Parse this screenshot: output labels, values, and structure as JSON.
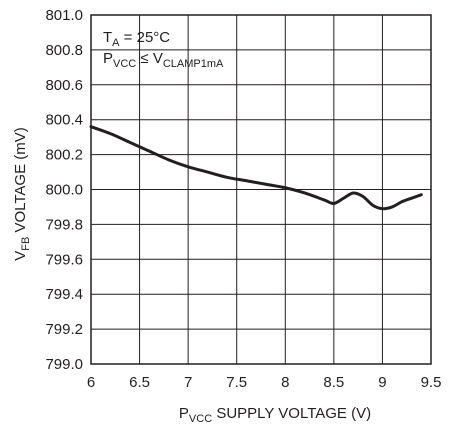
{
  "chart_data": {
    "type": "line",
    "title": "",
    "xlabel": {
      "main": "P",
      "sub": "VCC",
      "rest": " SUPPLY VOLTAGE (V)"
    },
    "ylabel": {
      "main": "V",
      "sub": "FB",
      "rest": " VOLTAGE (mV)"
    },
    "xlim": [
      6,
      9.5
    ],
    "ylim": [
      799.0,
      801.0
    ],
    "xticks": [
      6,
      6.5,
      7,
      7.5,
      8,
      8.5,
      9,
      9.5
    ],
    "xtick_labels": [
      "6",
      "6.5",
      "7",
      "7.5",
      "8",
      "8.5",
      "9",
      "9.5"
    ],
    "yticks": [
      799.0,
      799.2,
      799.4,
      799.6,
      799.8,
      800.0,
      800.2,
      800.4,
      800.6,
      800.8,
      801.0
    ],
    "ytick_labels": [
      "799.0",
      "799.2",
      "799.4",
      "799.6",
      "799.8",
      "800.0",
      "800.2",
      "800.4",
      "800.6",
      "800.8",
      "801.0"
    ],
    "grid": true,
    "annotations": [
      {
        "main": "T",
        "sub": "A",
        "rest": " = 25°C"
      },
      {
        "main": "P",
        "sub": "VCC",
        "rest": " ≤ V",
        "sub2": "CLAMP1mA"
      }
    ],
    "series": [
      {
        "color": "#231f20",
        "x": [
          6.0,
          6.2,
          6.4,
          6.6,
          6.8,
          7.0,
          7.2,
          7.4,
          7.6,
          7.8,
          8.0,
          8.2,
          8.4,
          8.5,
          8.6,
          8.7,
          8.8,
          8.9,
          9.0,
          9.1,
          9.2,
          9.3,
          9.4
        ],
        "y": [
          800.36,
          800.32,
          800.27,
          800.22,
          800.17,
          800.13,
          800.1,
          800.07,
          800.05,
          800.03,
          800.01,
          799.98,
          799.94,
          799.92,
          799.95,
          799.98,
          799.96,
          799.91,
          799.89,
          799.9,
          799.93,
          799.95,
          799.97
        ]
      }
    ]
  }
}
